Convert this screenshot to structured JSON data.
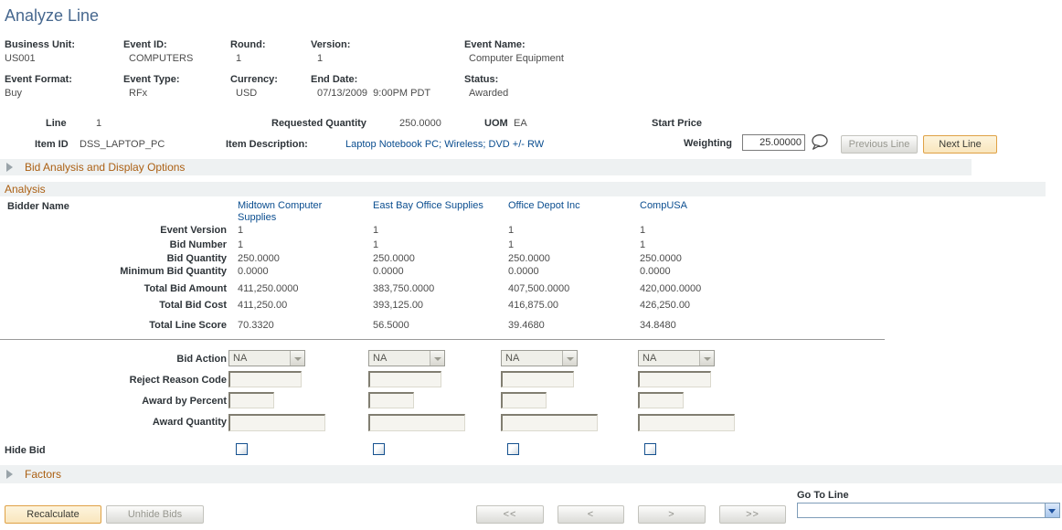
{
  "page": {
    "title": "Analyze Line"
  },
  "event_header": {
    "fields": [
      {
        "label": "Business Unit:",
        "value": "US001"
      },
      {
        "label": "Event ID:",
        "value": "COMPUTERS"
      },
      {
        "label": "Round:",
        "value": "1"
      },
      {
        "label": "Version:",
        "value": "1"
      },
      {
        "label": "Event Name:",
        "value": "Computer Equipment"
      },
      {
        "label": "Event Format:",
        "value": "Buy"
      },
      {
        "label": "Event Type:",
        "value": "RFx"
      },
      {
        "label": "Currency:",
        "value": "USD"
      },
      {
        "label": "End Date:",
        "value": "07/13/2009  9:00PM PDT"
      },
      {
        "label": "Status:",
        "value": "Awarded"
      }
    ]
  },
  "line_detail": {
    "line_label": "Line",
    "line_value": "1",
    "requested_quantity_label": "Requested Quantity",
    "requested_quantity": "250.0000",
    "uom_label": "UOM",
    "uom": "EA",
    "start_price_label": "Start Price",
    "item_id_label": "Item ID",
    "item_id": "DSS_LAPTOP_PC",
    "item_description_label": "Item Description:",
    "item_description": "Laptop Notebook PC; Wireless; DVD +/- RW",
    "weighting_label": "Weighting",
    "weighting_value": "25.00000",
    "previous_line_label": "Previous Line",
    "next_line_label": "Next Line"
  },
  "sections": {
    "bid_analysis_options": "Bid Analysis and Display Options",
    "analysis": "Analysis",
    "factors": "Factors"
  },
  "analysis_table": {
    "bidder_name_label": "Bidder Name",
    "bidders": [
      "Midtown Computer Supplies",
      "East Bay Office Supplies",
      "Office Depot Inc",
      "CompUSA"
    ],
    "rows": [
      {
        "label": "Event Version",
        "values": [
          "1",
          "1",
          "1",
          "1"
        ]
      },
      {
        "label": "Bid Number",
        "values": [
          "1",
          "1",
          "1",
          "1"
        ]
      },
      {
        "label": "Bid Quantity",
        "values": [
          "250.0000",
          "250.0000",
          "250.0000",
          "250.0000"
        ]
      },
      {
        "label": "Minimum Bid Quantity",
        "values": [
          "0.0000",
          "0.0000",
          "0.0000",
          "0.0000"
        ]
      },
      {
        "label": "Total Bid Amount",
        "values": [
          "411,250.0000",
          "383,750.0000",
          "407,500.0000",
          "420,000.0000"
        ]
      },
      {
        "label": "Total Bid Cost",
        "values": [
          "411,250.00",
          "393,125.00",
          "416,875.00",
          "426,250.00"
        ]
      },
      {
        "label": "Total Line Score",
        "values": [
          "70.3320",
          "56.5000",
          "39.4680",
          "34.8480"
        ]
      }
    ]
  },
  "bid_actions": {
    "bid_action_label": "Bid Action",
    "bid_action_value": "NA",
    "reject_reason_label": "Reject Reason Code",
    "award_by_percent_label": "Award by Percent",
    "award_quantity_label": "Award Quantity",
    "hide_bid_label": "Hide Bid"
  },
  "footer": {
    "recalculate_label": "Recalculate",
    "unhide_bids_label": "Unhide Bids",
    "nav_buttons": [
      "<<",
      "<",
      ">",
      ">>"
    ],
    "go_to_line_label": "Go To Line",
    "go_to_line_value": ""
  },
  "colors": {
    "title_blue": "#47688f",
    "link_blue": "#0a4d8f",
    "section_orange": "#ab5f12",
    "primary_button_bg": "#fbeccb",
    "primary_button_border": "#dfa145",
    "band_gray": "#eef1f2"
  }
}
